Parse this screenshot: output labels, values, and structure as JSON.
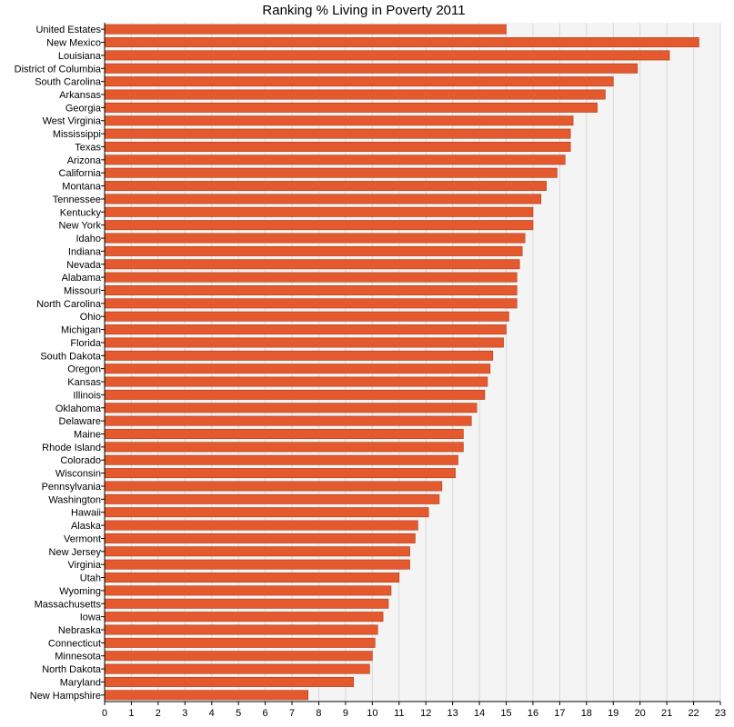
{
  "chart_data": {
    "type": "bar",
    "orientation": "horizontal",
    "title": "Ranking % Living in Poverty 2011",
    "xlabel": "",
    "ylabel": "",
    "xlim": [
      0,
      23
    ],
    "x_ticks": [
      0,
      1,
      2,
      3,
      4,
      5,
      6,
      7,
      8,
      9,
      10,
      11,
      12,
      13,
      14,
      15,
      16,
      17,
      18,
      19,
      20,
      21,
      22,
      23
    ],
    "grid": "vertical",
    "bar_color": "#E4592E",
    "categories": [
      "United Estates",
      "New Mexico",
      "Louisiana",
      "District of Columbia",
      "South Carolina",
      "Arkansas",
      "Georgia",
      "West Virginia",
      "Mississippi",
      "Texas",
      "Arizona",
      "California",
      "Montana",
      "Tennessee",
      "Kentucky",
      "New York",
      "Idaho",
      "Indiana",
      "Nevada",
      "Alabama",
      "Missouri",
      "North Carolina",
      "Ohio",
      "Michigan",
      "Florida",
      "South Dakota",
      "Oregon",
      "Kansas",
      "Illinois",
      "Oklahoma",
      "Delaware",
      "Maine",
      "Rhode Island",
      "Colorado",
      "Wisconsin",
      "Pennsylvania",
      "Washington",
      "Hawaii",
      "Alaska",
      "Vermont",
      "New Jersey",
      "Virginia",
      "Utah",
      "Wyoming",
      "Massachusetts",
      "Iowa",
      "Nebraska",
      "Connecticut",
      "Minnesota",
      "North Dakota",
      "Maryland",
      "New Hampshire"
    ],
    "values": [
      15.0,
      22.2,
      21.1,
      19.9,
      19.0,
      18.7,
      18.4,
      17.5,
      17.4,
      17.4,
      17.2,
      16.9,
      16.5,
      16.3,
      16.0,
      16.0,
      15.7,
      15.6,
      15.5,
      15.4,
      15.4,
      15.4,
      15.1,
      15.0,
      14.9,
      14.5,
      14.4,
      14.3,
      14.2,
      13.9,
      13.7,
      13.4,
      13.4,
      13.2,
      13.1,
      12.6,
      12.5,
      12.1,
      11.7,
      11.6,
      11.4,
      11.4,
      11.0,
      10.7,
      10.6,
      10.4,
      10.2,
      10.1,
      10.0,
      9.9,
      9.3,
      7.6
    ]
  }
}
